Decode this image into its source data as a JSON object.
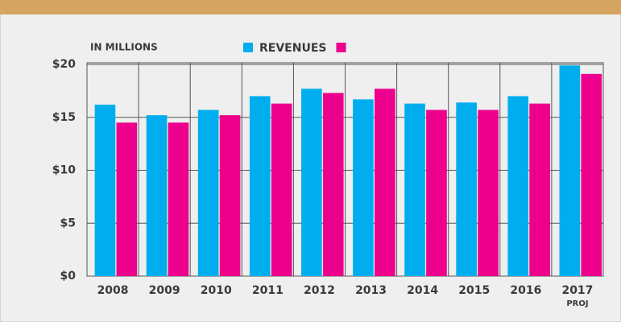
{
  "chart_data": {
    "type": "bar",
    "axis_note": "IN MILLIONS",
    "categories": [
      "2008",
      "2009",
      "2010",
      "2011",
      "2012",
      "2013",
      "2014",
      "2015",
      "2016",
      "2017"
    ],
    "projection_label": "PROJ",
    "series": [
      {
        "name": "REVENUES",
        "color": "#00aeef",
        "values": [
          16.2,
          15.2,
          15.7,
          17.0,
          17.7,
          16.7,
          16.3,
          16.4,
          17.0,
          19.9
        ]
      },
      {
        "color": "#ec008c",
        "values": [
          14.5,
          14.5,
          15.2,
          16.3,
          17.3,
          17.7,
          15.7,
          15.7,
          16.3,
          19.1
        ]
      }
    ],
    "ylim": [
      0,
      20
    ],
    "yticks": [
      {
        "value": 0,
        "label": "$0"
      },
      {
        "value": 5,
        "label": "$5"
      },
      {
        "value": 10,
        "label": "$10"
      },
      {
        "value": 15,
        "label": "$15"
      },
      {
        "value": 20,
        "label": "$20"
      }
    ],
    "grid": true
  }
}
